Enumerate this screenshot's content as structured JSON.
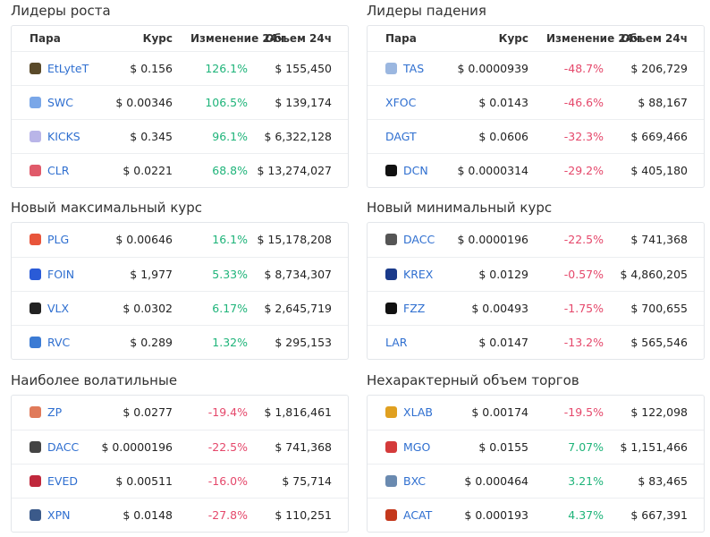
{
  "panels": [
    {
      "title": "Лидеры роста",
      "columns": [
        "Пара",
        "Курс",
        "Изменение 24ч",
        "Объем 24ч"
      ],
      "rows": [
        [
          "EtLyteT",
          "$ 0.156",
          "126.1%",
          "$ 155,450"
        ],
        [
          "SWC",
          "$ 0.00346",
          "106.5%",
          "$ 139,174"
        ],
        [
          "KICKS",
          "$ 0.345",
          "96.1%",
          "$ 6,322,128"
        ],
        [
          "CLR",
          "$ 0.0221",
          "68.8%",
          "$ 13,274,027"
        ]
      ]
    },
    {
      "title": "Лидеры падения",
      "columns": [
        "Пара",
        "Курс",
        "Изменение 24ч",
        "Объем 24ч"
      ],
      "rows": [
        [
          "TAS",
          "$ 0.0000939",
          "-48.7%",
          "$ 206,729"
        ],
        [
          "XFOC",
          "$ 0.0143",
          "-46.6%",
          "$ 88,167"
        ],
        [
          "DAGT",
          "$ 0.0606",
          "-32.3%",
          "$ 669,466"
        ],
        [
          "DCN",
          "$ 0.0000314",
          "-29.2%",
          "$ 405,180"
        ]
      ]
    },
    {
      "title": "Новый максимальный курс",
      "rows": [
        [
          "PLG",
          "$ 0.00646",
          "16.1%",
          "$ 15,178,208"
        ],
        [
          "FOIN",
          "$ 1,977",
          "5.33%",
          "$ 8,734,307"
        ],
        [
          "VLX",
          "$ 0.0302",
          "6.17%",
          "$ 2,645,719"
        ],
        [
          "RVC",
          "$ 0.289",
          "1.32%",
          "$ 295,153"
        ]
      ]
    },
    {
      "title": "Новый минимальный курс",
      "rows": [
        [
          "DACC",
          "$ 0.0000196",
          "-22.5%",
          "$ 741,368"
        ],
        [
          "KREX",
          "$ 0.0129",
          "-0.57%",
          "$ 4,860,205"
        ],
        [
          "FZZ",
          "$ 0.00493",
          "-1.75%",
          "$ 700,655"
        ],
        [
          "LAR",
          "$ 0.0147",
          "-13.2%",
          "$ 565,546"
        ]
      ]
    },
    {
      "title": "Наиболее волатильные",
      "rows": [
        [
          "ZP",
          "$ 0.0277",
          "-19.4%",
          "$ 1,816,461"
        ],
        [
          "DACC",
          "$ 0.0000196",
          "-22.5%",
          "$ 741,368"
        ],
        [
          "EVED",
          "$ 0.00511",
          "-16.0%",
          "$ 75,714"
        ],
        [
          "XPN",
          "$ 0.0148",
          "-27.8%",
          "$ 110,251"
        ]
      ]
    },
    {
      "title": "Нехарактерный объем торгов",
      "rows": [
        [
          "XLAB",
          "$ 0.00174",
          "-19.5%",
          "$ 122,098"
        ],
        [
          "MGO",
          "$ 0.0155",
          "7.07%",
          "$ 1,151,466"
        ],
        [
          "BXC",
          "$ 0.000464",
          "3.21%",
          "$ 83,465"
        ],
        [
          "ACAT",
          "$ 0.000193",
          "4.37%",
          "$ 667,391"
        ]
      ]
    }
  ]
}
